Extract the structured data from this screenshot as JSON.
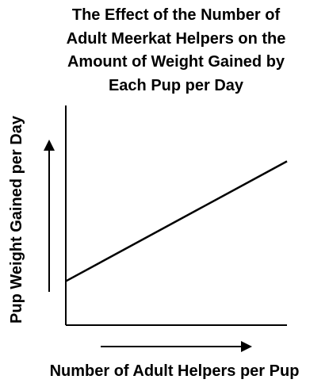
{
  "chart_data": {
    "type": "line",
    "title_lines": [
      "The Effect of the Number of",
      "Adult Meerkat Helpers on the",
      "Amount of Weight Gained by",
      "Each Pup per Day"
    ],
    "xlabel": "Number of Adult Helpers per Pup",
    "ylabel": "Pup Weight Gained per Day",
    "x_ticks_shown": false,
    "y_ticks_shown": false,
    "grid": false,
    "legend": "none",
    "xlim": [
      0,
      1
    ],
    "ylim": [
      0,
      1
    ],
    "series": [
      {
        "x": [
          0,
          1
        ],
        "y": [
          0.22,
          0.82
        ],
        "color": "#000000"
      }
    ],
    "axis_arrows": [
      "x-increasing",
      "y-increasing"
    ],
    "colors": {
      "ink": "#000000",
      "background": "#ffffff"
    }
  }
}
